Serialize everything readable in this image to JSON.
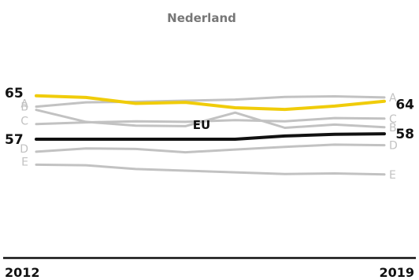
{
  "chart_data": {
    "type": "line",
    "x": [
      "2012",
      "2013",
      "2014",
      "2015",
      "2016",
      "2017",
      "2018",
      "2019"
    ],
    "x_tick_labels": [
      "2012",
      "2019"
    ],
    "groups": [
      {
        "title": "Nederland",
        "highlight": {
          "values": [
            65,
            64.7,
            63.6,
            63.8,
            62.8,
            62.5,
            63.1,
            64
          ],
          "start_label": "65",
          "end_label": "64",
          "color": "#f0cc0a"
        },
        "series": [
          {
            "label": "A",
            "values": [
              63,
              63.8,
              63.9,
              64.1,
              64.3,
              64.8,
              64.9,
              64.7
            ],
            "color": "#c2c2c2"
          },
          {
            "label": "B",
            "values": [
              62.4,
              60.2,
              59.5,
              59.4,
              61.9,
              59.1,
              59.7,
              59.2
            ],
            "color": "#c2c2c2"
          },
          {
            "label": "C",
            "values": [
              59.8,
              60.1,
              60.3,
              60.2,
              60.5,
              60.3,
              60.9,
              60.8
            ],
            "color": "#c2c2c2"
          },
          {
            "label": "D",
            "values": [
              54.7,
              55.3,
              55.2,
              54.6,
              55.1,
              55.6,
              56,
              55.9
            ],
            "color": "#c2c2c2"
          }
        ]
      },
      {
        "title": "EU",
        "highlight": {
          "values": [
            57,
            57,
            57,
            57,
            57,
            57.6,
            57.9,
            58
          ],
          "start_label": "57",
          "end_label": "58",
          "color": "#111111"
        },
        "series": [
          {
            "label": "E",
            "values": [
              52.3,
              52.2,
              51.5,
              51.2,
              50.9,
              50.6,
              50.7,
              50.5
            ],
            "color": "#c2c2c2"
          }
        ]
      }
    ],
    "axis_color": "#111111",
    "grid": false,
    "legend": "none"
  }
}
